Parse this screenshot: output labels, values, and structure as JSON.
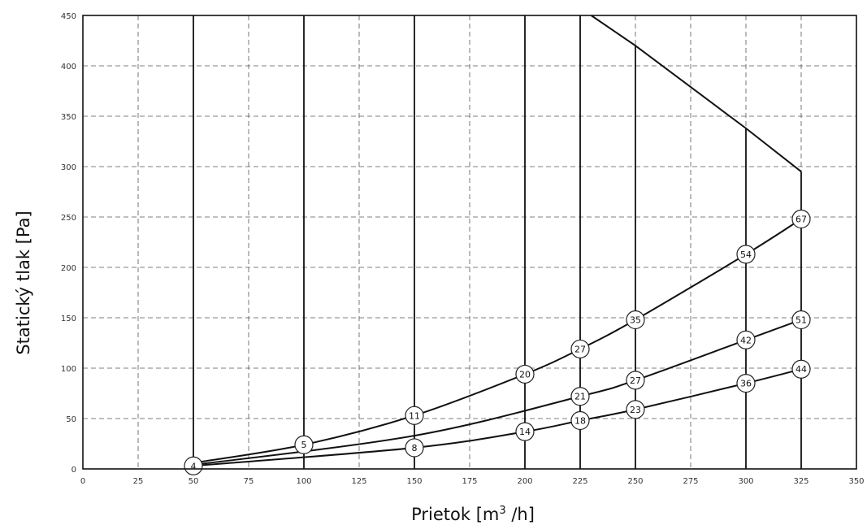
{
  "chart_data": {
    "type": "line",
    "xlabel": "Prietok [m",
    "xlabel_sup": "3",
    "xlabel_tail": " /h]",
    "ylabel": "Statický tlak [Pa]",
    "xlim": [
      0,
      350
    ],
    "ylim": [
      0,
      450
    ],
    "x_ticks": [
      0,
      25,
      50,
      75,
      100,
      125,
      150,
      175,
      200,
      225,
      250,
      275,
      300,
      325,
      350
    ],
    "y_ticks": [
      0,
      50,
      100,
      150,
      200,
      250,
      300,
      350,
      400,
      450
    ],
    "grid": true,
    "operating_flows": [
      50,
      100,
      150,
      200,
      225,
      250,
      300,
      325
    ],
    "limit_curve": {
      "x": [
        230,
        250,
        300,
        325
      ],
      "y": [
        450,
        420,
        338,
        295
      ]
    },
    "series": [
      {
        "x": [
          50,
          100,
          150,
          200,
          225,
          250,
          300,
          325
        ],
        "y": [
          6,
          24,
          53,
          94,
          119,
          148,
          213,
          248
        ],
        "point_labels": [
          "",
          "5",
          "11",
          "20",
          "27",
          "35",
          "54",
          "67"
        ]
      },
      {
        "x": [
          50,
          150,
          225,
          250,
          300,
          325
        ],
        "y": [
          4,
          33,
          72,
          88,
          128,
          148
        ],
        "point_labels": [
          "",
          "",
          "21",
          "27",
          "42",
          "51"
        ]
      },
      {
        "x": [
          50,
          150,
          200,
          225,
          250,
          300,
          325
        ],
        "y": [
          3,
          21,
          37,
          48,
          59,
          85,
          99
        ],
        "point_labels": [
          "4",
          "8",
          "14",
          "18",
          "23",
          "36",
          "44"
        ]
      }
    ]
  }
}
